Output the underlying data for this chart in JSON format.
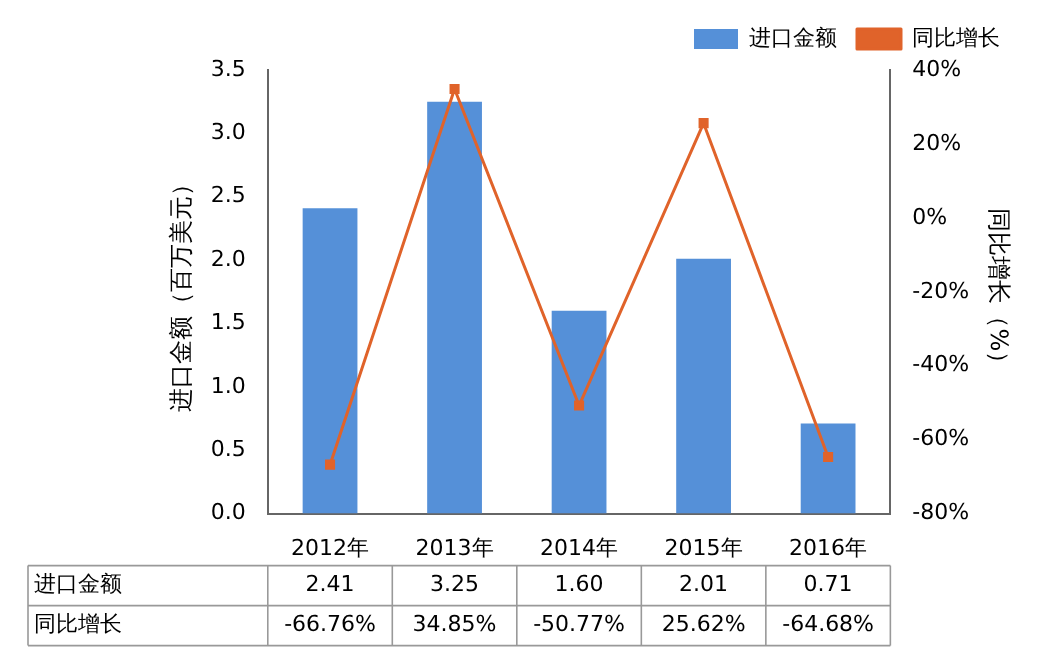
{
  "chart_data": {
    "type": "bar",
    "ylabel": "进口金额（百万美元）",
    "y2label": "同比增长（%）",
    "categories": [
      "2012年",
      "2013年",
      "2014年",
      "2015年",
      "2016年"
    ],
    "series": [
      {
        "name": "进口金额",
        "color": "#5590d8",
        "values": [
          2.41,
          3.25,
          1.6,
          2.01,
          0.71
        ],
        "value_labels": [
          "2.41",
          "3.25",
          "1.60",
          "2.01",
          "0.71"
        ]
      },
      {
        "name": "同比增长",
        "type": "line",
        "axis": "y2",
        "color": "#e0632a",
        "marker": "square",
        "values": [
          -66.76,
          34.85,
          -50.77,
          25.62,
          -64.68
        ],
        "value_labels": [
          "-66.76%",
          "34.85%",
          "-50.77%",
          "25.62%",
          "-64.68%"
        ]
      }
    ],
    "ylim": [
      0,
      3.5
    ],
    "yticks": [
      {
        "value": 0,
        "label": "0.0"
      },
      {
        "value": 0.5,
        "label": "0.5"
      },
      {
        "value": 1,
        "label": "1.0"
      },
      {
        "value": 1.5,
        "label": "1.5"
      },
      {
        "value": 2,
        "label": "2.0"
      },
      {
        "value": 2.5,
        "label": "2.5"
      },
      {
        "value": 3,
        "label": "3.0"
      },
      {
        "value": 3.5,
        "label": "3.5"
      }
    ],
    "y2lim": [
      -80,
      40
    ],
    "y2ticks": [
      {
        "value": -80,
        "label": "-80%"
      },
      {
        "value": -60,
        "label": "-60%"
      },
      {
        "value": -40,
        "label": "-40%"
      },
      {
        "value": -20,
        "label": "-20%"
      },
      {
        "value": 0,
        "label": "0%"
      },
      {
        "value": 20,
        "label": "20%"
      },
      {
        "value": 40,
        "label": "40%"
      }
    ],
    "legend": "top right",
    "grid": false
  }
}
